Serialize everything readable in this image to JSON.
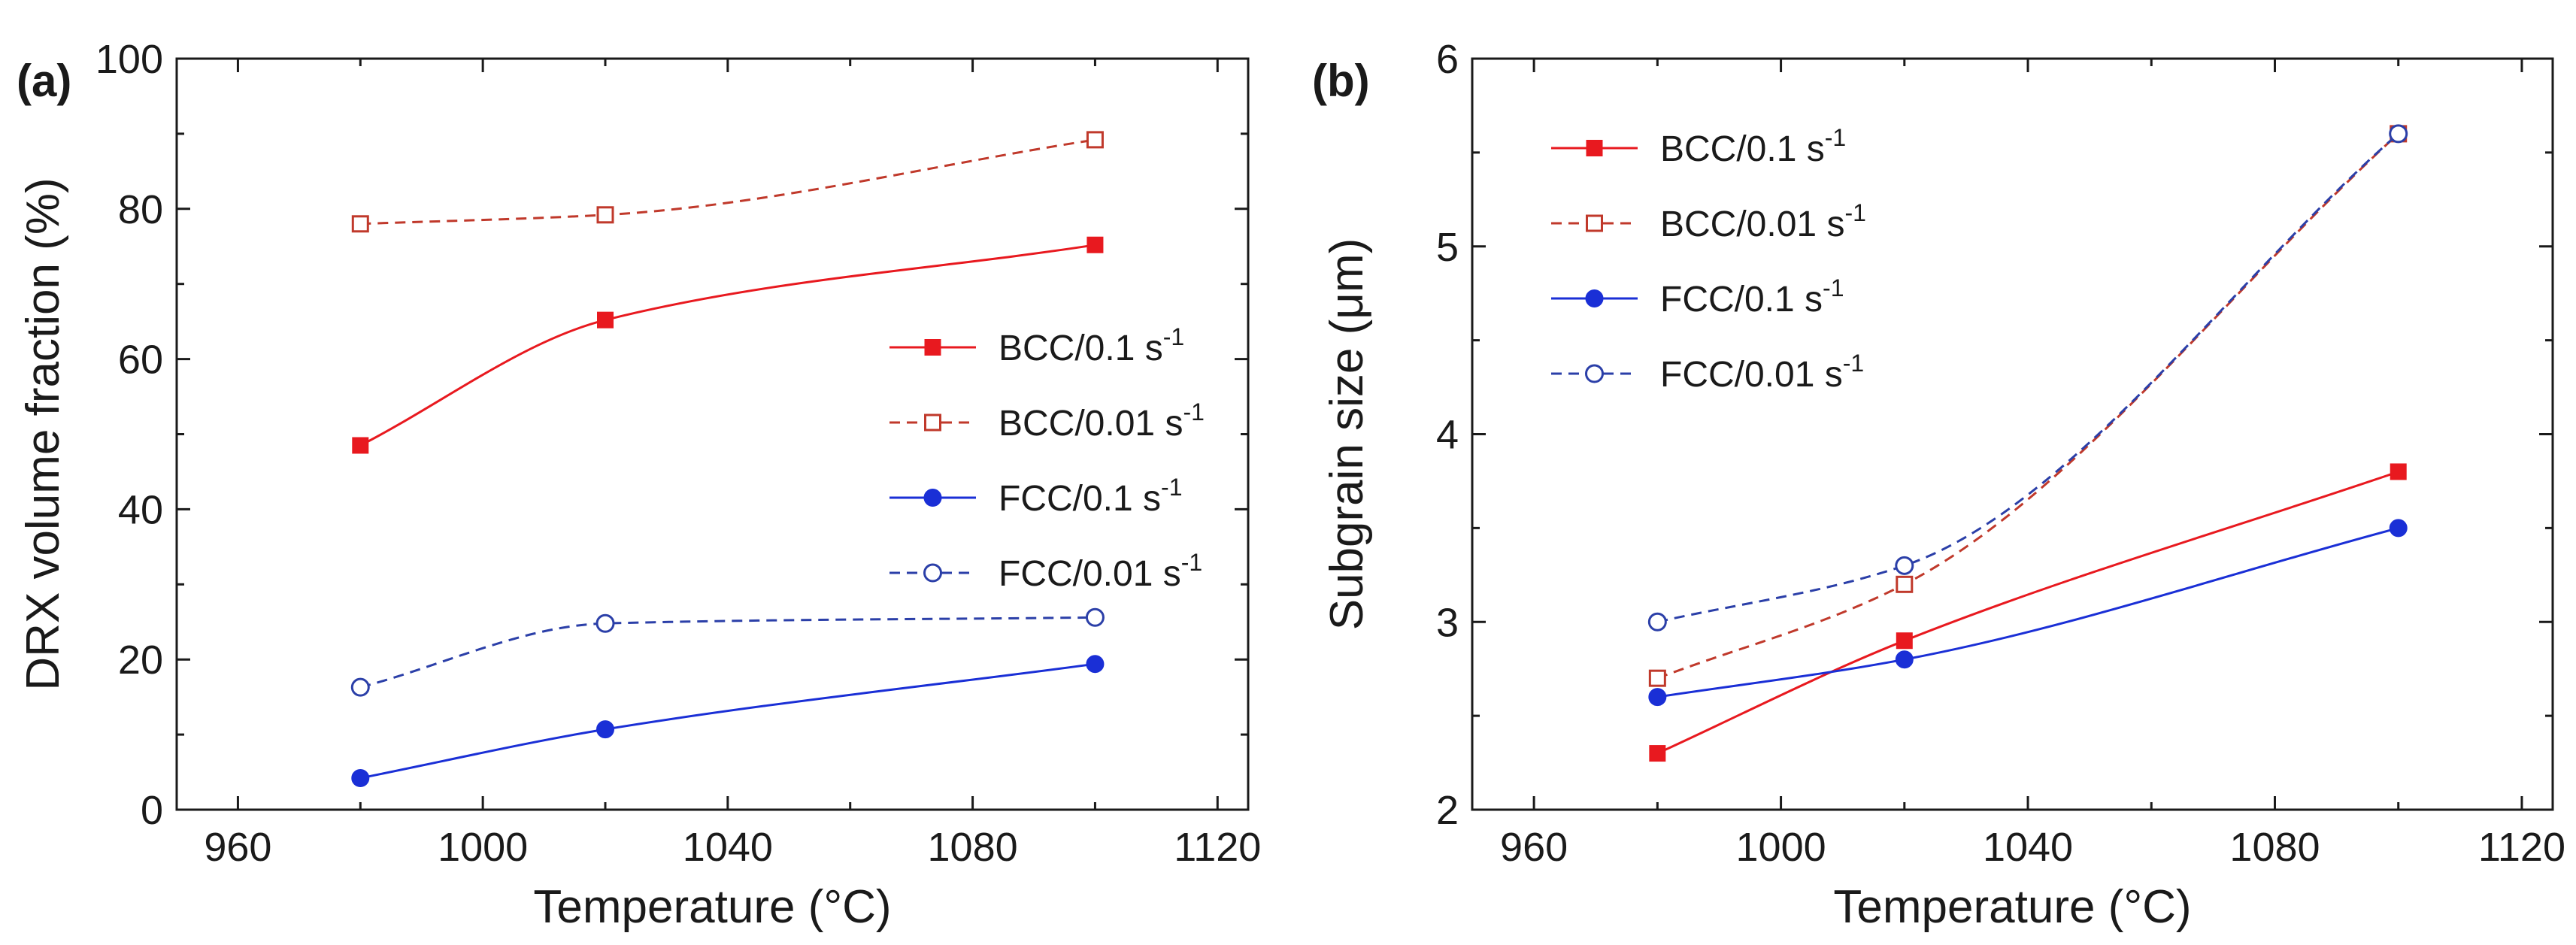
{
  "chart_data": [
    {
      "type": "line",
      "panel_label": "(a)",
      "xlabel": "Temperature (°C)",
      "ylabel": "DRX volume fraction (%)",
      "xlim": [
        950,
        1125
      ],
      "ylim": [
        0,
        100
      ],
      "xticks": [
        960,
        1000,
        1040,
        1080,
        1120
      ],
      "yticks": [
        0,
        20,
        40,
        60,
        80,
        100
      ],
      "legend_position": "right-middle",
      "x": [
        980,
        1020,
        1100
      ],
      "series": [
        {
          "name": "BCC/0.1 s",
          "sup": "-1",
          "values": [
            48.5,
            65.2,
            75.2
          ],
          "color": "#e8191f",
          "marker": "square-filled",
          "dashed": false
        },
        {
          "name": "BCC/0.01 s",
          "sup": "-1",
          "values": [
            78.0,
            79.2,
            89.2
          ],
          "color": "#c0392b",
          "marker": "square-open",
          "dashed": true
        },
        {
          "name": "FCC/0.1 s",
          "sup": "-1",
          "values": [
            4.2,
            10.7,
            19.4
          ],
          "color": "#1a2fd6",
          "marker": "circle-filled",
          "dashed": false
        },
        {
          "name": "FCC/0.01 s",
          "sup": "-1",
          "values": [
            16.3,
            24.8,
            25.6
          ],
          "color": "#2b3fa8",
          "marker": "circle-open",
          "dashed": true
        }
      ]
    },
    {
      "type": "line",
      "panel_label": "(b)",
      "xlabel": "Temperature (°C)",
      "ylabel": "Subgrain size (μm)",
      "xlim": [
        950,
        1125
      ],
      "ylim": [
        2,
        6
      ],
      "xticks": [
        960,
        1000,
        1040,
        1080,
        1120
      ],
      "yticks": [
        2,
        3,
        4,
        5,
        6
      ],
      "legend_position": "top-left",
      "x": [
        980,
        1020,
        1100
      ],
      "series": [
        {
          "name": "BCC/0.1 s",
          "sup": "-1",
          "values": [
            2.3,
            2.9,
            3.8
          ],
          "color": "#e8191f",
          "marker": "square-filled",
          "dashed": false
        },
        {
          "name": "BCC/0.01 s",
          "sup": "-1",
          "values": [
            2.7,
            3.2,
            5.6
          ],
          "color": "#c0392b",
          "marker": "square-open",
          "dashed": true
        },
        {
          "name": "FCC/0.1 s",
          "sup": "-1",
          "values": [
            2.6,
            2.8,
            3.5
          ],
          "color": "#1a2fd6",
          "marker": "circle-filled",
          "dashed": false
        },
        {
          "name": "FCC/0.01 s",
          "sup": "-1",
          "values": [
            3.0,
            3.3,
            5.6
          ],
          "color": "#2b3fa8",
          "marker": "circle-open",
          "dashed": true
        }
      ]
    }
  ]
}
